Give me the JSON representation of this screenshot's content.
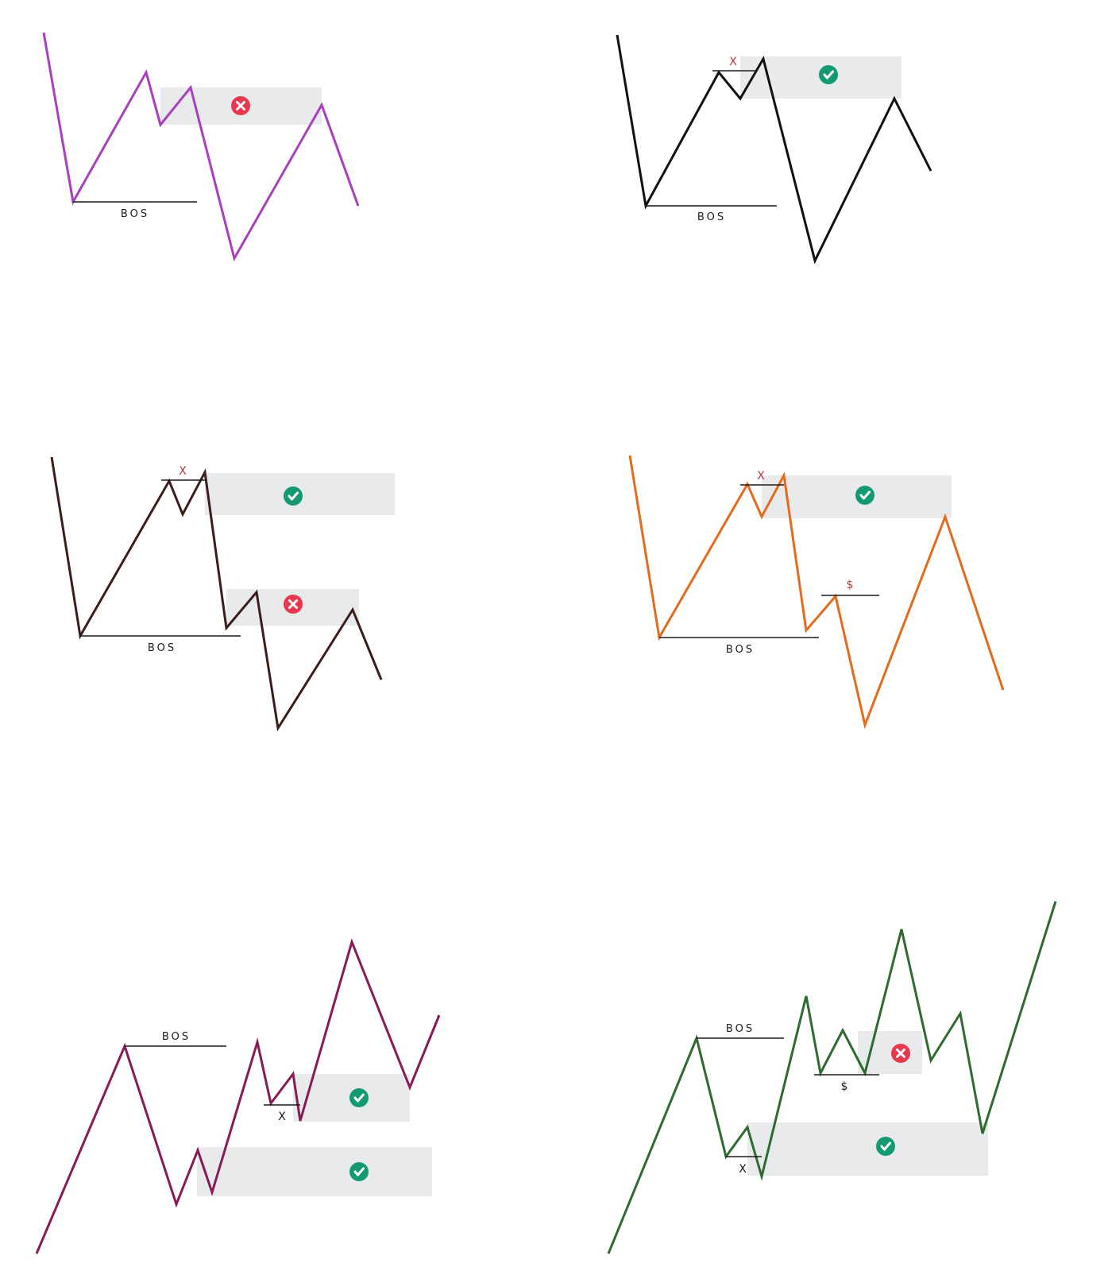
{
  "colors": {
    "zone": "#e9eaeb",
    "valid": "#149a73",
    "invalid": "#e8384f",
    "marker_red": "#b33a3a",
    "level_line": "#1a1a1a"
  },
  "icons": {
    "valid": "check-circle-icon",
    "invalid": "x-circle-icon"
  },
  "diagrams": [
    {
      "id": "purple-invalid-zone",
      "color": "#a93fbf",
      "zones": [
        {
          "status": "invalid"
        }
      ],
      "labels": {
        "bos": "BOS"
      }
    },
    {
      "id": "black-valid-zone",
      "color": "#111111",
      "zones": [
        {
          "status": "valid"
        }
      ],
      "labels": {
        "bos": "BOS",
        "x": "X"
      }
    },
    {
      "id": "dark-brown-two-zones",
      "color": "#3d1d1c",
      "zones": [
        {
          "status": "valid"
        },
        {
          "status": "invalid"
        }
      ],
      "labels": {
        "bos": "BOS",
        "x": "X"
      }
    },
    {
      "id": "orange-valid-zone",
      "color": "#e36b1e",
      "zones": [
        {
          "status": "valid"
        }
      ],
      "labels": {
        "bos": "BOS",
        "x": "X",
        "dollar": "$"
      }
    },
    {
      "id": "maroon-two-valid-zones",
      "color": "#861b57",
      "zones": [
        {
          "status": "valid"
        },
        {
          "status": "valid"
        }
      ],
      "labels": {
        "bos": "BOS",
        "x": "X"
      }
    },
    {
      "id": "green-mixed-zones",
      "color": "#2e6a31",
      "zones": [
        {
          "status": "invalid"
        },
        {
          "status": "valid"
        }
      ],
      "labels": {
        "bos": "BOS",
        "x": "X",
        "dollar": "$"
      }
    }
  ]
}
